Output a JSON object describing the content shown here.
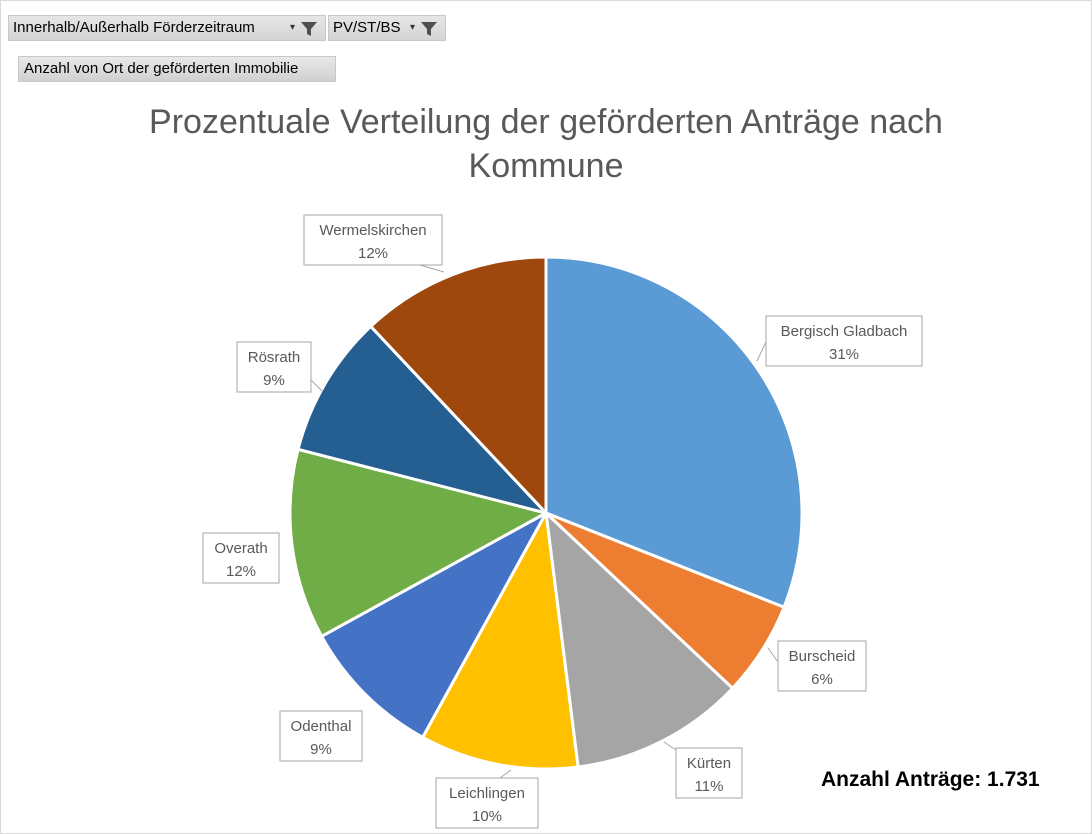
{
  "filters": {
    "period_label": "Innerhalb/Außerhalb Förderzeitraum",
    "type_label": "PV/ST/BS",
    "arrow_glyph": "▾"
  },
  "value_field": {
    "label": "Anzahl von Ort der geförderten Immobilie"
  },
  "chart_data": {
    "type": "pie",
    "title_line1": "Prozentuale Verteilung der geförderten Anträge nach",
    "title_line2": "Kommune",
    "slices": [
      {
        "name": "Bergisch Gladbach",
        "percent": 31,
        "label": "31%",
        "color": "#5b9bd5"
      },
      {
        "name": "Burscheid",
        "percent": 6,
        "label": "6%",
        "color": "#ed7d31"
      },
      {
        "name": "Kürten",
        "percent": 11,
        "label": "11%",
        "color": "#a5a5a5"
      },
      {
        "name": "Leichlingen",
        "percent": 10,
        "label": "10%",
        "color": "#ffc000"
      },
      {
        "name": "Odenthal",
        "percent": 9,
        "label": "9%",
        "color": "#4472c4"
      },
      {
        "name": "Overath",
        "percent": 12,
        "label": "12%",
        "color": "#70ad47"
      },
      {
        "name": "Rösrath",
        "percent": 9,
        "label": "9%",
        "color": "#255e91"
      },
      {
        "name": "Wermelskirchen",
        "percent": 12,
        "label": "12%",
        "color": "#9e480e"
      }
    ]
  },
  "summary": {
    "total_text": "Anzahl Anträge: 1.731"
  }
}
